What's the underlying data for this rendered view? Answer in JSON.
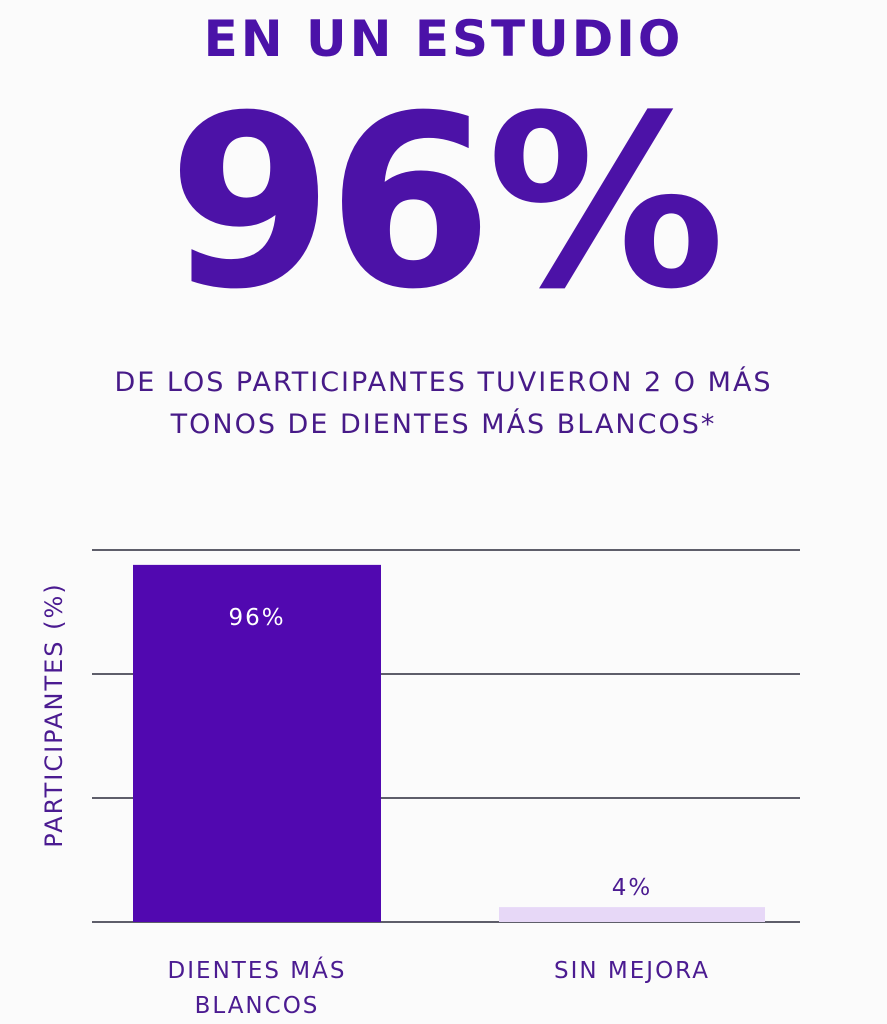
{
  "header": {
    "kicker": "EN UN ESTUDIO",
    "headline": "96%",
    "subtitle_line1": "DE LOS PARTICIPANTES TUVIERON 2 O MÁS",
    "subtitle_line2": "TONOS DE DIENTES MÁS BLANCOS*"
  },
  "colors": {
    "primary": "#5108b0",
    "light": "#e7d8f7",
    "text": "#4b1b91",
    "grid": "#2b2b3a"
  },
  "chart_data": {
    "type": "bar",
    "title": "",
    "xlabel": "",
    "ylabel": "PARTICIPANTES (%)",
    "ylim": [
      0,
      100
    ],
    "grid": true,
    "categories": [
      [
        "DIENTES MÁS",
        "BLANCOS"
      ],
      [
        "SIN MEJORA"
      ]
    ],
    "values": [
      96,
      4
    ],
    "data_labels": [
      "96%",
      "4%"
    ]
  }
}
